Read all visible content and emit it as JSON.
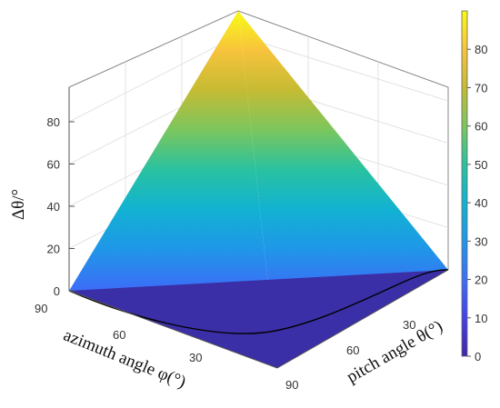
{
  "chart_data": {
    "type": "surface3d",
    "title": "",
    "xlabel": "azimuth angle φ(°)",
    "ylabel": "pitch angle θ(°)",
    "zlabel": "Δθ/°",
    "x_ticks": [
      "90",
      "60",
      "30"
    ],
    "y_ticks": [
      "30",
      "60",
      "90"
    ],
    "z_ticks": [
      "0",
      "20",
      "40",
      "60",
      "80"
    ],
    "zlim": [
      0,
      90
    ],
    "colorbar": {
      "ticks": [
        "0",
        "10",
        "20",
        "30",
        "40",
        "50",
        "60",
        "70",
        "80"
      ],
      "range": [
        0,
        90
      ],
      "colormap": "parula",
      "colors": [
        "#3e26a8",
        "#4541e7",
        "#3b6ff7",
        "#1f97e8",
        "#12b2d2",
        "#29c2a0",
        "#7bc65d",
        "#c5bb33",
        "#f7c33c",
        "#f9fb15"
      ]
    },
    "surface": {
      "corner_values": [
        {
          "azimuth": 90,
          "pitch": 0,
          "value": 0
        },
        {
          "azimuth": 0,
          "pitch": 0,
          "value": 90
        },
        {
          "azimuth": 0,
          "pitch": 90,
          "value": 0
        },
        {
          "azimuth": 90,
          "pitch": 90,
          "value": 0
        }
      ],
      "contour_level": 0
    },
    "grid": true
  }
}
